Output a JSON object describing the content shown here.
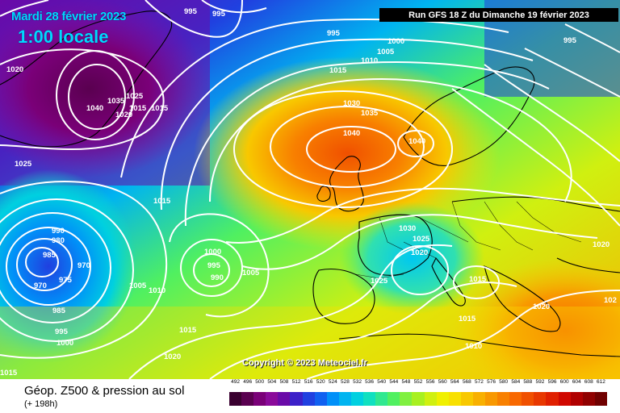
{
  "header": {
    "date": "Mardi 28 février 2023",
    "time": "1:00 locale",
    "run": "Run GFS 18 Z du Dimanche 19 février 2023"
  },
  "copyright": "Copyright © 2023 Meteociel.fr",
  "footer": {
    "title": "Géop. Z500 & pression au sol",
    "subtitle": "(+ 198h)"
  },
  "scale": {
    "labels": [
      "492",
      "496",
      "500",
      "504",
      "508",
      "512",
      "516",
      "520",
      "524",
      "528",
      "532",
      "536",
      "540",
      "544",
      "548",
      "552",
      "556",
      "560",
      "564",
      "568",
      "572",
      "576",
      "580",
      "584",
      "588",
      "592",
      "596",
      "600",
      "604",
      "608",
      "612"
    ],
    "colors": [
      "#3a0030",
      "#5a0050",
      "#7a0078",
      "#8a0a9a",
      "#6a0aa8",
      "#3c20c8",
      "#2040e0",
      "#1060f0",
      "#0090f8",
      "#00b4f0",
      "#00d0e0",
      "#10e0c0",
      "#30e890",
      "#50f060",
      "#80f040",
      "#a8f020",
      "#d0f010",
      "#f0f000",
      "#f8e000",
      "#f8c800",
      "#f8b000",
      "#f89800",
      "#f88000",
      "#f86800",
      "#f05000",
      "#e83800",
      "#e02000",
      "#d00800",
      "#b00000",
      "#900000",
      "#700000"
    ]
  },
  "isobar_labels": [
    "995",
    "995",
    "995",
    "1000",
    "1005",
    "1010",
    "1015",
    "1020",
    "1040",
    "1035",
    "1025",
    "1020",
    "1015",
    "1015",
    "1030",
    "1035",
    "1040",
    "1040",
    "1025",
    "1015",
    "990",
    "980",
    "985",
    "970",
    "975",
    "970",
    "985",
    "995",
    "1000",
    "1000",
    "995",
    "990",
    "1005",
    "1005",
    "1010",
    "1015",
    "1020",
    "1030",
    "1025",
    "1020",
    "1025",
    "1015",
    "1015",
    "1010",
    "1020",
    "1020",
    "1015"
  ],
  "colors": {
    "accent_text": "#00d8ff",
    "run_box_bg": "#000000",
    "isobars": "#ffffff"
  }
}
